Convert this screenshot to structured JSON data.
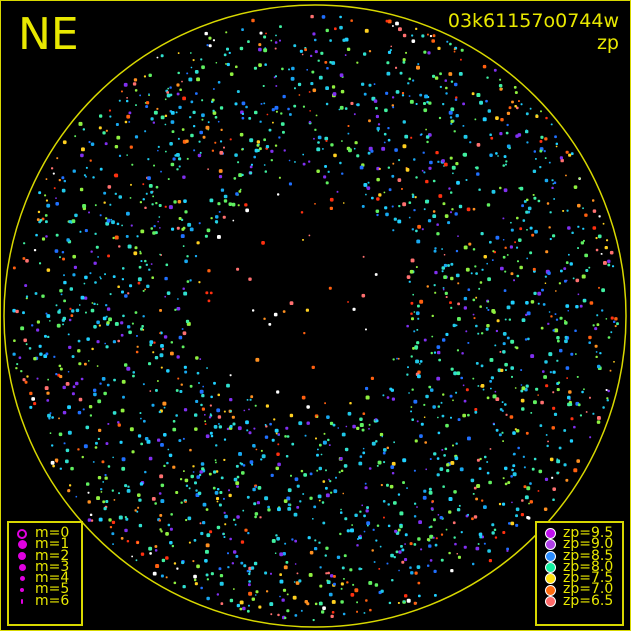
{
  "header": {
    "corner_label": "NE",
    "image_id": "03k61157o0744w",
    "quantity": "zp"
  },
  "chart_data": {
    "type": "scatter",
    "title": "03k61157o0744w",
    "subtitle": "zp",
    "color_by": "zp",
    "size_by": "m",
    "horizon_circle": true,
    "size_legend": [
      {
        "label": "m=0",
        "symbol": "open-circle"
      },
      {
        "label": "m=1"
      },
      {
        "label": "m=2"
      },
      {
        "label": "m=3"
      },
      {
        "label": "m=4"
      },
      {
        "label": "m=5"
      },
      {
        "label": "m=6"
      }
    ],
    "color_legend": [
      {
        "label": "zp=9.5",
        "color": "#c010f0"
      },
      {
        "label": "zp=9.0",
        "color": "#b040e8"
      },
      {
        "label": "zp=8.5",
        "color": "#2a8cff"
      },
      {
        "label": "zp=8.0",
        "color": "#10f0a0"
      },
      {
        "label": "zp=7.5",
        "color": "#ffe010"
      },
      {
        "label": "zp=7.0",
        "color": "#ff6a10"
      },
      {
        "label": "zp=6.5",
        "color": "#ff6a6a"
      }
    ],
    "legend_placement": [
      "bottom-left",
      "bottom-right"
    ]
  }
}
